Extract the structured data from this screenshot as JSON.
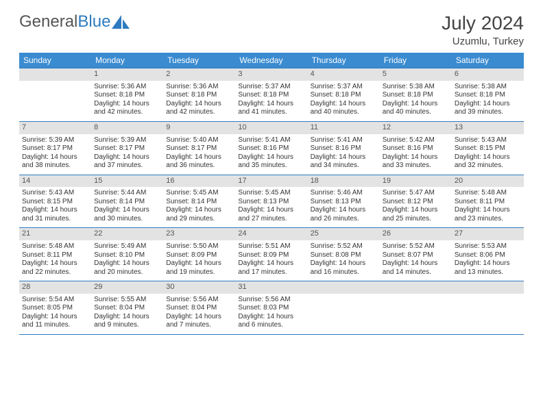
{
  "brand": {
    "part1": "General",
    "part2": "Blue"
  },
  "title": "July 2024",
  "location": "Uzumlu, Turkey",
  "colors": {
    "header_bg": "#3a8bd0",
    "header_text": "#ffffff",
    "daynum_bg": "#e3e3e3",
    "rule": "#2d7bc0",
    "text": "#333333",
    "brand_gray": "#555555",
    "brand_blue": "#2d7bc0"
  },
  "weekdays": [
    "Sunday",
    "Monday",
    "Tuesday",
    "Wednesday",
    "Thursday",
    "Friday",
    "Saturday"
  ],
  "weeks": [
    [
      null,
      {
        "n": "1",
        "sr": "5:36 AM",
        "ss": "8:18 PM",
        "dl": "14 hours and 42 minutes."
      },
      {
        "n": "2",
        "sr": "5:36 AM",
        "ss": "8:18 PM",
        "dl": "14 hours and 42 minutes."
      },
      {
        "n": "3",
        "sr": "5:37 AM",
        "ss": "8:18 PM",
        "dl": "14 hours and 41 minutes."
      },
      {
        "n": "4",
        "sr": "5:37 AM",
        "ss": "8:18 PM",
        "dl": "14 hours and 40 minutes."
      },
      {
        "n": "5",
        "sr": "5:38 AM",
        "ss": "8:18 PM",
        "dl": "14 hours and 40 minutes."
      },
      {
        "n": "6",
        "sr": "5:38 AM",
        "ss": "8:18 PM",
        "dl": "14 hours and 39 minutes."
      }
    ],
    [
      {
        "n": "7",
        "sr": "5:39 AM",
        "ss": "8:17 PM",
        "dl": "14 hours and 38 minutes."
      },
      {
        "n": "8",
        "sr": "5:39 AM",
        "ss": "8:17 PM",
        "dl": "14 hours and 37 minutes."
      },
      {
        "n": "9",
        "sr": "5:40 AM",
        "ss": "8:17 PM",
        "dl": "14 hours and 36 minutes."
      },
      {
        "n": "10",
        "sr": "5:41 AM",
        "ss": "8:16 PM",
        "dl": "14 hours and 35 minutes."
      },
      {
        "n": "11",
        "sr": "5:41 AM",
        "ss": "8:16 PM",
        "dl": "14 hours and 34 minutes."
      },
      {
        "n": "12",
        "sr": "5:42 AM",
        "ss": "8:16 PM",
        "dl": "14 hours and 33 minutes."
      },
      {
        "n": "13",
        "sr": "5:43 AM",
        "ss": "8:15 PM",
        "dl": "14 hours and 32 minutes."
      }
    ],
    [
      {
        "n": "14",
        "sr": "5:43 AM",
        "ss": "8:15 PM",
        "dl": "14 hours and 31 minutes."
      },
      {
        "n": "15",
        "sr": "5:44 AM",
        "ss": "8:14 PM",
        "dl": "14 hours and 30 minutes."
      },
      {
        "n": "16",
        "sr": "5:45 AM",
        "ss": "8:14 PM",
        "dl": "14 hours and 29 minutes."
      },
      {
        "n": "17",
        "sr": "5:45 AM",
        "ss": "8:13 PM",
        "dl": "14 hours and 27 minutes."
      },
      {
        "n": "18",
        "sr": "5:46 AM",
        "ss": "8:13 PM",
        "dl": "14 hours and 26 minutes."
      },
      {
        "n": "19",
        "sr": "5:47 AM",
        "ss": "8:12 PM",
        "dl": "14 hours and 25 minutes."
      },
      {
        "n": "20",
        "sr": "5:48 AM",
        "ss": "8:11 PM",
        "dl": "14 hours and 23 minutes."
      }
    ],
    [
      {
        "n": "21",
        "sr": "5:48 AM",
        "ss": "8:11 PM",
        "dl": "14 hours and 22 minutes."
      },
      {
        "n": "22",
        "sr": "5:49 AM",
        "ss": "8:10 PM",
        "dl": "14 hours and 20 minutes."
      },
      {
        "n": "23",
        "sr": "5:50 AM",
        "ss": "8:09 PM",
        "dl": "14 hours and 19 minutes."
      },
      {
        "n": "24",
        "sr": "5:51 AM",
        "ss": "8:09 PM",
        "dl": "14 hours and 17 minutes."
      },
      {
        "n": "25",
        "sr": "5:52 AM",
        "ss": "8:08 PM",
        "dl": "14 hours and 16 minutes."
      },
      {
        "n": "26",
        "sr": "5:52 AM",
        "ss": "8:07 PM",
        "dl": "14 hours and 14 minutes."
      },
      {
        "n": "27",
        "sr": "5:53 AM",
        "ss": "8:06 PM",
        "dl": "14 hours and 13 minutes."
      }
    ],
    [
      {
        "n": "28",
        "sr": "5:54 AM",
        "ss": "8:05 PM",
        "dl": "14 hours and 11 minutes."
      },
      {
        "n": "29",
        "sr": "5:55 AM",
        "ss": "8:04 PM",
        "dl": "14 hours and 9 minutes."
      },
      {
        "n": "30",
        "sr": "5:56 AM",
        "ss": "8:04 PM",
        "dl": "14 hours and 7 minutes."
      },
      {
        "n": "31",
        "sr": "5:56 AM",
        "ss": "8:03 PM",
        "dl": "14 hours and 6 minutes."
      },
      null,
      null,
      null
    ]
  ],
  "labels": {
    "sunrise": "Sunrise:",
    "sunset": "Sunset:",
    "daylight": "Daylight:"
  }
}
